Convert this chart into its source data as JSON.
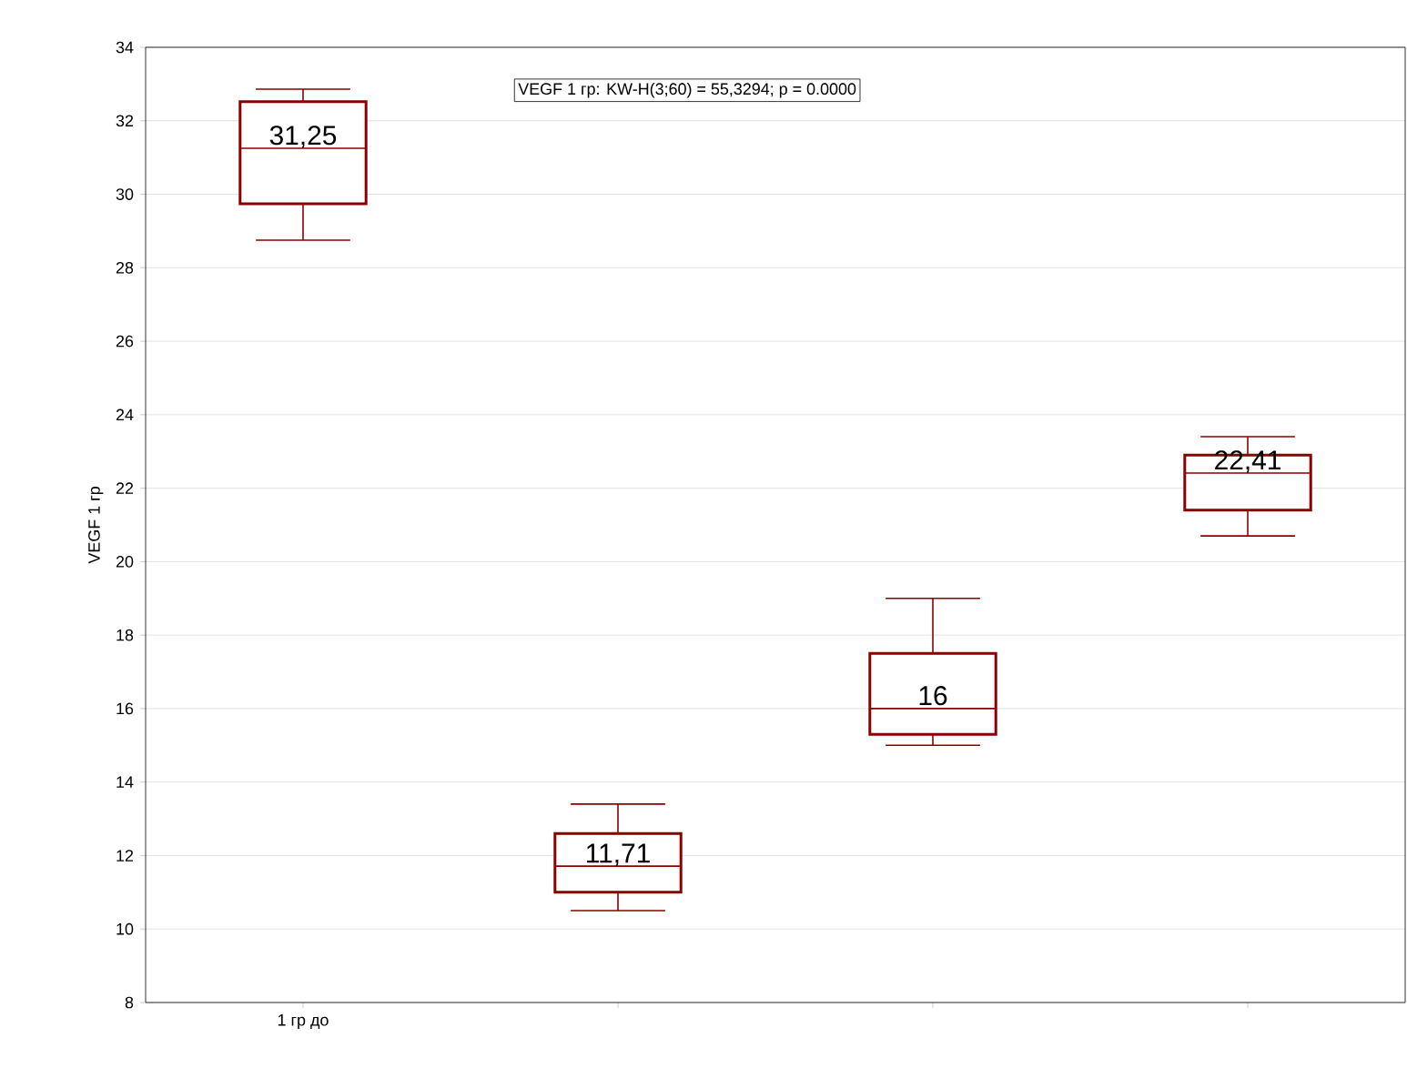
{
  "chart_data": {
    "type": "box",
    "ylabel": "VEGF 1 гр",
    "categories": [
      "1 гр до",
      null,
      null,
      null
    ],
    "series": [
      {
        "color": "#8b0000",
        "boxes": [
          {
            "low": 28.75,
            "q1": 29.74,
            "median": 31.25,
            "q3": 32.52,
            "high": 32.86
          },
          {
            "low": 10.5,
            "q1": 11.0,
            "median": 11.71,
            "q3": 12.6,
            "high": 13.4
          },
          {
            "low": 15.0,
            "q1": 15.3,
            "median": 16.0,
            "q3": 17.5,
            "high": 19.0
          },
          {
            "low": 20.7,
            "q1": 21.4,
            "median": 22.41,
            "q3": 22.9,
            "high": 23.4
          }
        ],
        "value_labels": [
          "31,25",
          "11,71",
          "16",
          "22,41"
        ]
      }
    ],
    "ylim": [
      8,
      34
    ],
    "yticks": [
      8,
      10,
      12,
      14,
      16,
      18,
      20,
      22,
      24,
      26,
      28,
      30,
      32,
      34
    ],
    "grid": "y",
    "annotations": [
      "VEGF 1 гр:  KW-H(3;60) = 55,3294; p = 0.0000"
    ]
  }
}
